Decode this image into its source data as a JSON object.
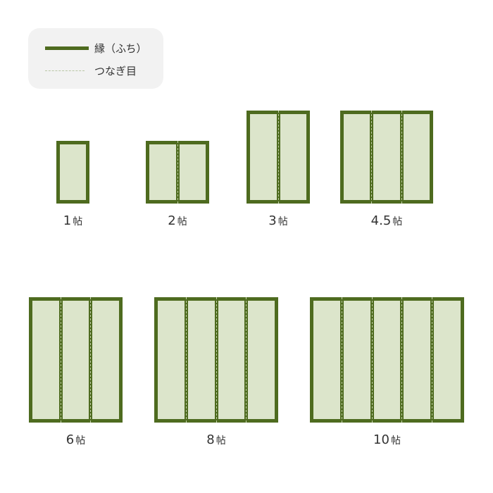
{
  "legend": {
    "border_label": "縁（ふち）",
    "seam_label": "つなぎ目"
  },
  "colors": {
    "border": "#4e6b1f",
    "mat": "#dce5cb"
  },
  "unit": "帖",
  "layouts": [
    {
      "size": "1",
      "columns": 1
    },
    {
      "size": "2",
      "columns": 2
    },
    {
      "size": "3",
      "columns": 2
    },
    {
      "size": "4.5",
      "columns": 3
    },
    {
      "size": "6",
      "columns": 3
    },
    {
      "size": "8",
      "columns": 4
    },
    {
      "size": "10",
      "columns": 5
    }
  ]
}
